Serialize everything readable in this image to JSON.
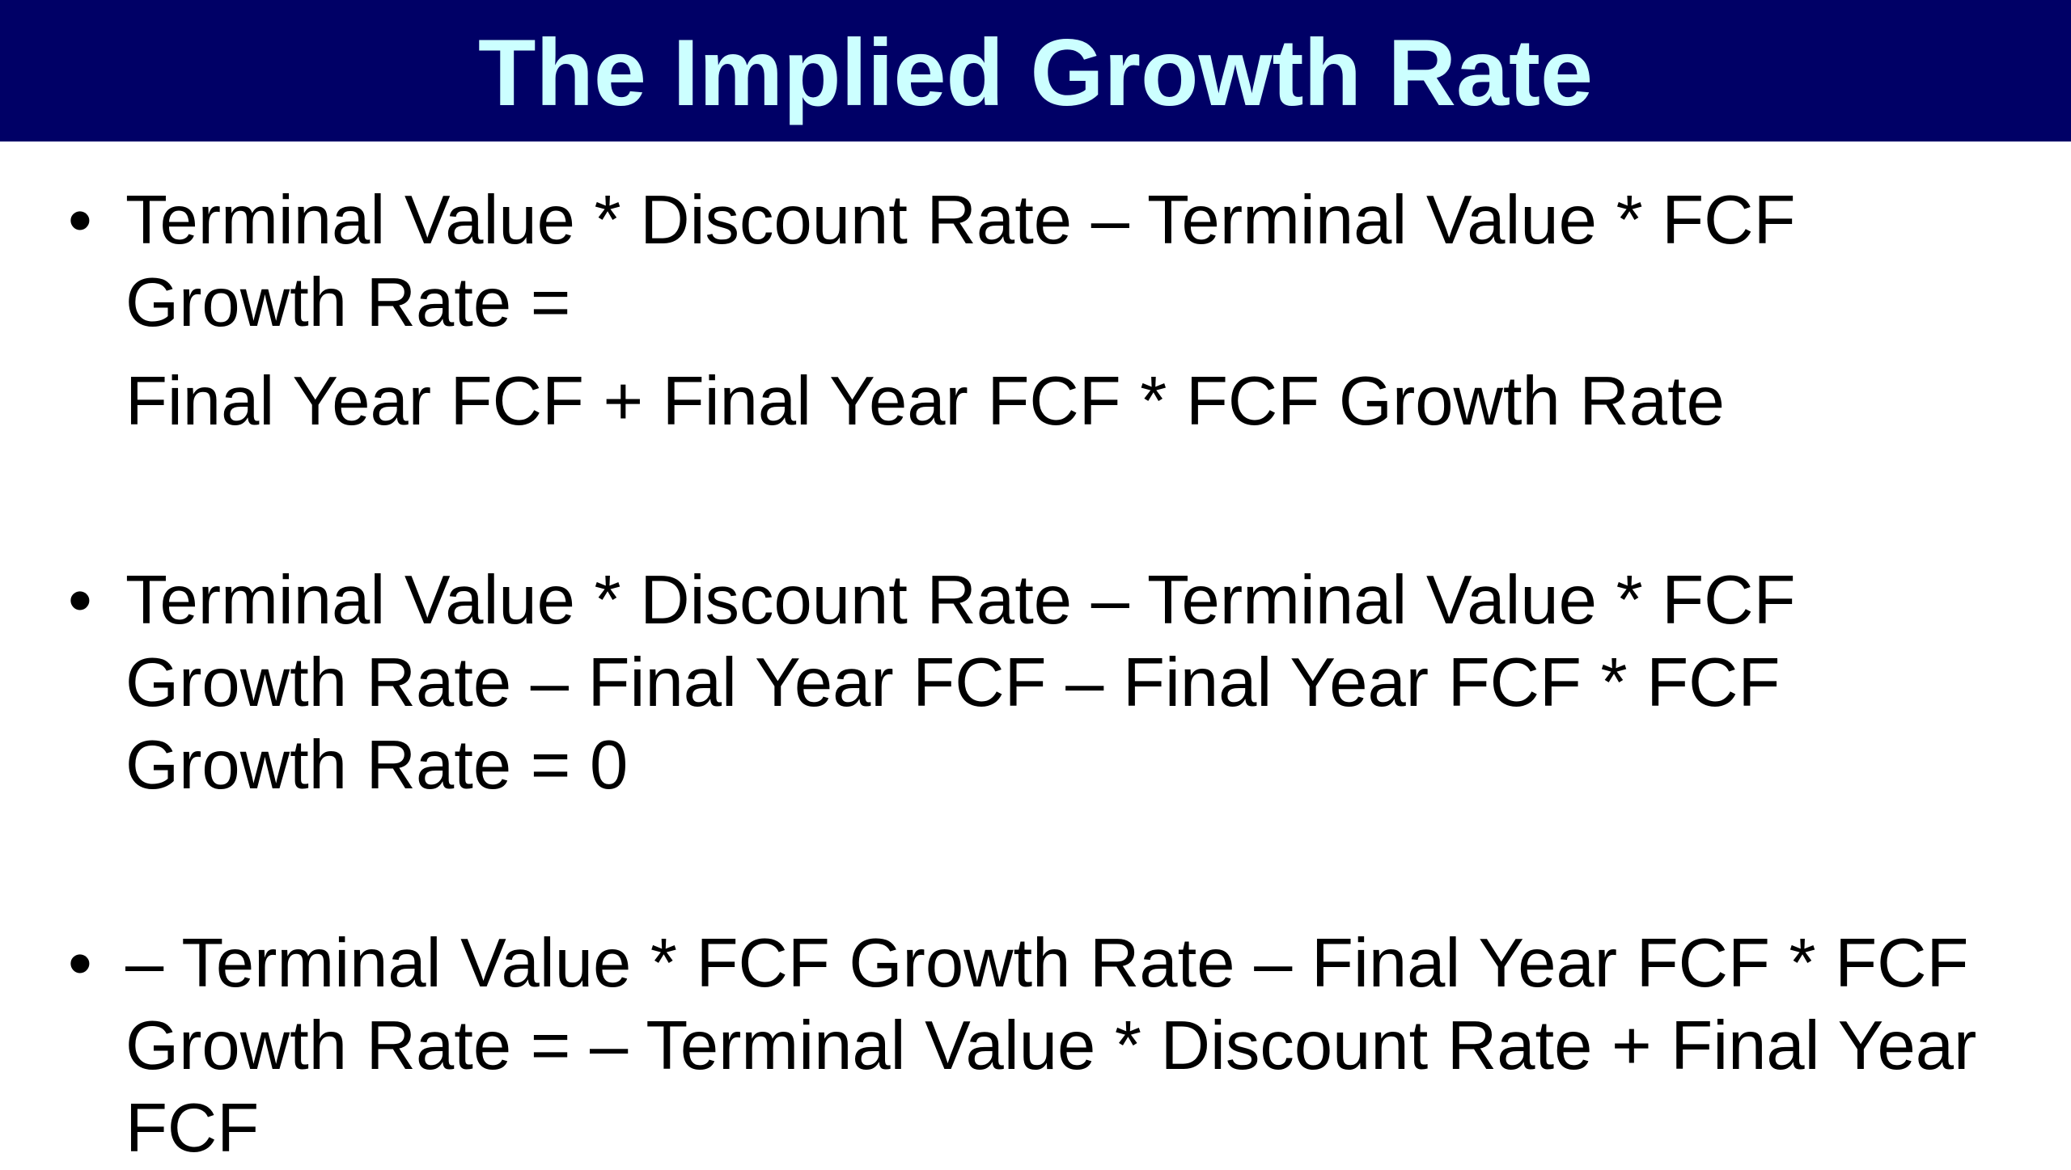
{
  "header": {
    "title": "The Implied Growth Rate"
  },
  "bullets": [
    {
      "lines": [
        "Terminal Value * Discount Rate – Terminal Value * FCF",
        "Growth Rate ="
      ],
      "continuation": "Final Year FCF + Final Year FCF * FCF Growth Rate"
    },
    {
      "lines": [
        "Terminal Value * Discount Rate – Terminal Value * FCF",
        "Growth Rate – Final Year FCF – Final Year FCF * FCF",
        "Growth Rate = 0"
      ]
    },
    {
      "lines": [
        "– Terminal Value * FCF Growth Rate – Final Year FCF * FCF",
        "Growth Rate = – Terminal Value * Discount Rate + Final Year",
        "FCF"
      ]
    }
  ]
}
